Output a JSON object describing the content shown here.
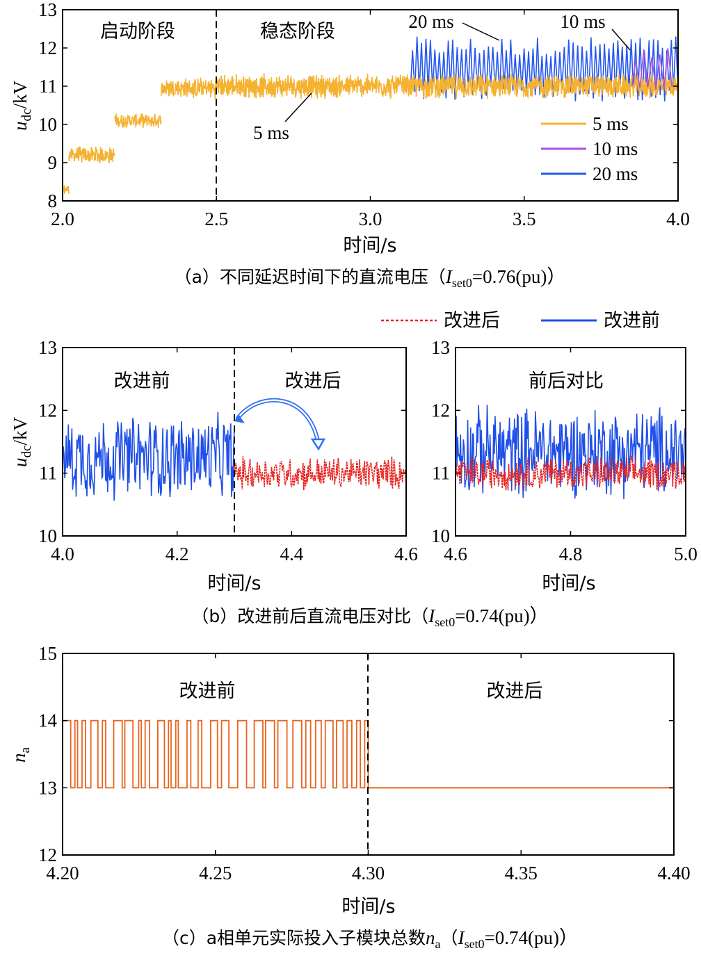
{
  "chart_data": [
    {
      "type": "line",
      "caption": "（a）不同延迟时间下的直流电压（Iset0=0.76(pu)）",
      "caption_parts": {
        "prefix": "（a）不同延迟时间下的直流电压（",
        "var": "I",
        "sub": "set0",
        "suffix": "=0.76(pu)）"
      },
      "ylabel": {
        "var": "u",
        "sub": "dc",
        "unit": "/kV"
      },
      "xlabel": "时间/s",
      "xlim": [
        2.0,
        4.0
      ],
      "ylim": [
        8,
        13
      ],
      "xticks": [
        "2.0",
        "2.5",
        "3.0",
        "3.5",
        "4.0"
      ],
      "yticks": [
        "8",
        "9",
        "10",
        "11",
        "12",
        "13"
      ],
      "regions": [
        {
          "label": "启动阶段",
          "x_end": 2.5
        },
        {
          "label": "稳态阶段",
          "x_start": 2.5
        }
      ],
      "annotations": [
        "20 ms",
        "10 ms",
        "5 ms"
      ],
      "legend": [
        "5 ms",
        "10 ms",
        "20 ms"
      ],
      "legend_position": "bottom-right",
      "series": [
        {
          "name": "5 ms",
          "color": "#F5B130",
          "segments": [
            {
              "x": [
                2.0,
                2.02
              ],
              "mean": 8.3,
              "amp": 0.15
            },
            {
              "x": [
                2.02,
                2.17
              ],
              "mean": 9.2,
              "amp": 0.25
            },
            {
              "x": [
                2.17,
                2.32
              ],
              "mean": 10.1,
              "amp": 0.2
            },
            {
              "x": [
                2.32,
                2.5
              ],
              "mean": 10.95,
              "amp": 0.3
            },
            {
              "x": [
                2.5,
                4.0
              ],
              "mean": 11.0,
              "amp": 0.35
            }
          ]
        },
        {
          "name": "10 ms",
          "color": "#B04FE0",
          "x_range": [
            3.85,
            3.98
          ],
          "low": 10.9,
          "high": 12.0
        },
        {
          "name": "20 ms",
          "color": "#2557F0",
          "x_range": [
            3.13,
            4.0
          ],
          "low": 10.6,
          "high": 12.3
        }
      ]
    },
    {
      "type": "line",
      "caption": "（b）改进前后直流电压对比（Iset0=0.74(pu)）",
      "caption_parts": {
        "prefix": "（b）改进前后直流电压对比（",
        "var": "I",
        "sub": "set0",
        "suffix": "=0.74(pu)）"
      },
      "legend": [
        "改进后",
        "改进前"
      ],
      "legend_position": "top-right",
      "ylabel": {
        "var": "u",
        "sub": "dc",
        "unit": "/kV"
      },
      "panels": [
        {
          "xlabel": "时间/s",
          "xlim": [
            4.0,
            4.6
          ],
          "ylim": [
            10,
            13
          ],
          "xticks": [
            "4.0",
            "4.2",
            "4.4",
            "4.6"
          ],
          "yticks": [
            "10",
            "11",
            "12",
            "13"
          ],
          "labels": [
            "改进前",
            "改进后"
          ],
          "split_x": 4.3,
          "series": [
            {
              "name": "改进前",
              "color": "#1F4FE8",
              "x_range": [
                4.0,
                4.3
              ],
              "mean": 11.25,
              "amp": 0.75
            },
            {
              "name": "改进后",
              "color": "#E8211E",
              "x_range": [
                4.3,
                4.6
              ],
              "mean": 11.0,
              "amp": 0.3
            }
          ]
        },
        {
          "xlabel": "时间/s",
          "xlim": [
            4.6,
            5.0
          ],
          "ylim": [
            10,
            13
          ],
          "xticks": [
            "4.6",
            "4.8",
            "5.0"
          ],
          "yticks": [
            "10",
            "11",
            "12",
            "13"
          ],
          "labels": [
            "前后对比"
          ],
          "series": [
            {
              "name": "改进前",
              "color": "#1F4FE8",
              "x_range": [
                4.6,
                5.0
              ],
              "mean": 11.35,
              "amp": 0.8
            },
            {
              "name": "改进后",
              "color": "#E8211E",
              "x_range": [
                4.6,
                5.0
              ],
              "mean": 11.0,
              "amp": 0.3
            }
          ]
        }
      ]
    },
    {
      "type": "line",
      "caption": "（c）a相单元实际投入子模块总数na（Iset0=0.74(pu)）",
      "caption_parts": {
        "prefix": "（c）a相单元实际投入子模块总数",
        "var2": "n",
        "sub2": "a",
        "mid": "（",
        "var": "I",
        "sub": "set0",
        "suffix": "=0.74(pu)）"
      },
      "ylabel": {
        "var": "n",
        "sub": "a",
        "unit": ""
      },
      "xlabel": "时间/s",
      "xlim": [
        4.2,
        4.4
      ],
      "ylim": [
        12,
        15
      ],
      "xticks": [
        "4.20",
        "4.25",
        "4.30",
        "4.35",
        "4.40"
      ],
      "yticks": [
        "12",
        "13",
        "14",
        "15"
      ],
      "labels": [
        "改进前",
        "改进后"
      ],
      "split_x": 4.3,
      "series": [
        {
          "name": "na",
          "color": "#E8641E",
          "segments": [
            {
              "x": [
                4.2,
                4.3
              ],
              "switching_between": [
                13,
                14
              ]
            },
            {
              "x": [
                4.3,
                4.4
              ],
              "constant": 13
            }
          ]
        }
      ]
    }
  ]
}
